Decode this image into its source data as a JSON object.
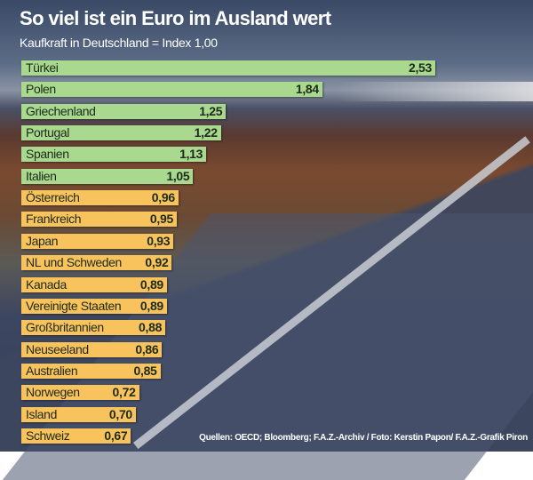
{
  "chart_data": {
    "type": "bar",
    "orientation": "horizontal",
    "title": "So viel ist ein Euro im Ausland wert",
    "subtitle": "Kaufkraft in Deutschland = Index 1,00",
    "categories": [
      "Türkei",
      "Polen",
      "Griechenland",
      "Portugal",
      "Spanien",
      "Italien",
      "Österreich",
      "Frankreich",
      "Japan",
      "NL und Schweden",
      "Kanada",
      "Vereinigte Staaten",
      "Großbritannien",
      "Neuseeland",
      "Australien",
      "Norwegen",
      "Island",
      "Schweiz"
    ],
    "values": [
      2.53,
      1.84,
      1.25,
      1.22,
      1.13,
      1.05,
      0.96,
      0.95,
      0.93,
      0.92,
      0.89,
      0.89,
      0.88,
      0.86,
      0.85,
      0.72,
      0.7,
      0.67
    ],
    "value_labels": [
      "2,53",
      "1,84",
      "1,25",
      "1,22",
      "1,13",
      "1,05",
      "0,96",
      "0,95",
      "0,93",
      "0,92",
      "0,89",
      "0,89",
      "0,88",
      "0,86",
      "0,85",
      "0,72",
      "0,70",
      "0,67"
    ],
    "colors": {
      "above_index": "#a9d88f",
      "below_index": "#f8c35c"
    },
    "xlim": [
      0,
      2.6
    ],
    "grid": false,
    "source": "Quellen: OECD; Bloomberg; F.A.Z.-Archiv / Foto: Kerstin Papon/ F.A.Z.-Grafik Piron"
  }
}
